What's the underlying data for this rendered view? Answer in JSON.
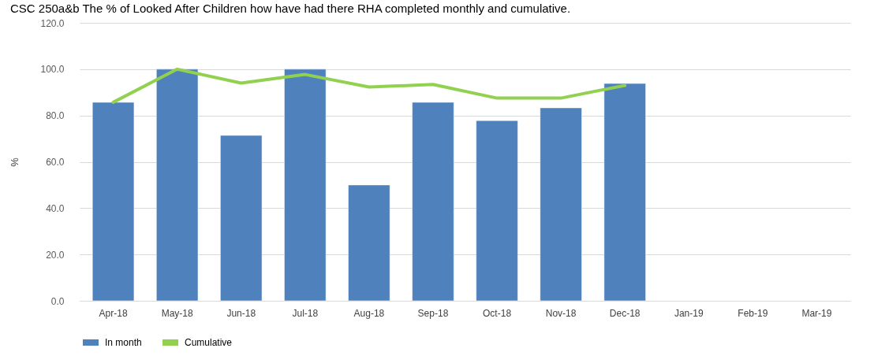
{
  "chart_data": {
    "type": "bar",
    "title": "CSC 250a&b The % of Looked After Children how have had there RHA completed monthly and cumulative.",
    "categories": [
      "Apr-18",
      "May-18",
      "Jun-18",
      "Jul-18",
      "Aug-18",
      "Sep-18",
      "Oct-18",
      "Nov-18",
      "Dec-18",
      "Jan-19",
      "Feb-19",
      "Mar-19"
    ],
    "ylabel": "%",
    "series": [
      {
        "name": "In month",
        "color": "#4f81bd",
        "values": [
          85.7,
          100.0,
          71.4,
          100.0,
          50.0,
          85.7,
          77.8,
          83.3,
          93.8,
          null,
          null,
          null
        ]
      },
      {
        "name": "Cumulative",
        "type": "line",
        "color": "#92d050",
        "values": [
          85.7,
          100.0,
          94.0,
          97.7,
          92.3,
          93.4,
          87.5,
          87.5,
          93.0,
          null,
          null,
          null
        ]
      }
    ],
    "ylim": [
      0,
      120
    ],
    "yticks": [
      {
        "value": 0,
        "label": "0.0"
      },
      {
        "value": 20,
        "label": "20.0"
      },
      {
        "value": 40,
        "label": "40.0"
      },
      {
        "value": 60,
        "label": "60.0"
      },
      {
        "value": 80,
        "label": "80.0"
      },
      {
        "value": 100,
        "label": "100.0"
      },
      {
        "value": 120,
        "label": "120.0"
      }
    ],
    "grid": "y",
    "legend": "bottom"
  }
}
